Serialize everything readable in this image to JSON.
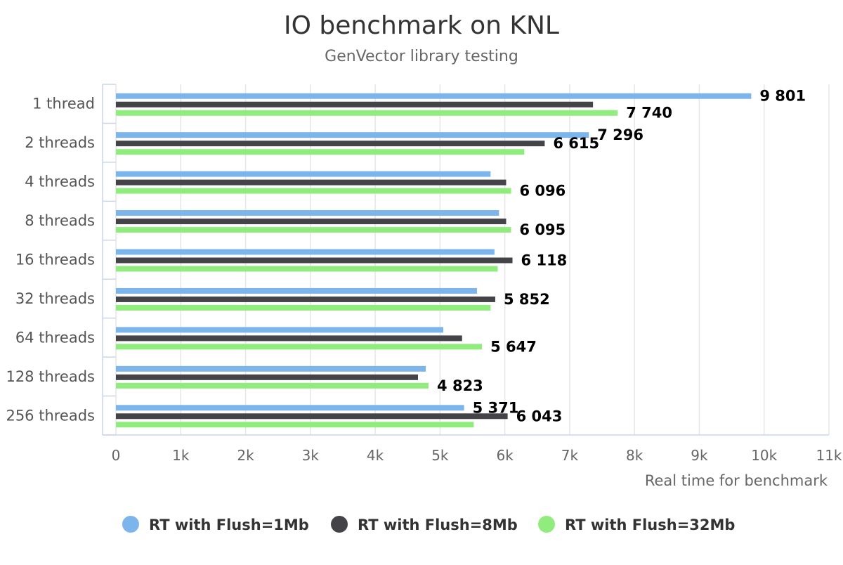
{
  "chart_data": {
    "type": "bar",
    "orientation": "horizontal",
    "title": "IO benchmark on KNL",
    "subtitle": "GenVector library testing",
    "xlabel": "Real time for benchmark",
    "ylabel": "",
    "xlim": [
      0,
      11000
    ],
    "x_ticks": [
      0,
      1000,
      2000,
      3000,
      4000,
      5000,
      6000,
      7000,
      8000,
      9000,
      10000,
      11000
    ],
    "x_tick_labels": [
      "0",
      "1k",
      "2k",
      "3k",
      "4k",
      "5k",
      "6k",
      "7k",
      "8k",
      "9k",
      "10k",
      "11k"
    ],
    "grid": true,
    "legend_position": "bottom-center",
    "categories": [
      "1 thread",
      "2 threads",
      "4 threads",
      "8 threads",
      "16 threads",
      "32 threads",
      "64 threads",
      "128 threads",
      "256 threads"
    ],
    "series": [
      {
        "name": "RT with Flush=1Mb",
        "color": "#7cb5ec",
        "values": [
          9801,
          7296,
          5780,
          5910,
          5840,
          5570,
          5050,
          4780,
          5371
        ],
        "labels": [
          "9 801",
          "7 296",
          "",
          "",
          "",
          "",
          "",
          "",
          "5 371"
        ]
      },
      {
        "name": "RT with Flush=8Mb",
        "color": "#434348",
        "values": [
          7360,
          6615,
          6020,
          6020,
          6118,
          5852,
          5340,
          4660,
          6043
        ],
        "labels": [
          "",
          "6 615",
          "",
          "",
          "6 118",
          "5 852",
          "",
          "",
          "6 043"
        ]
      },
      {
        "name": "RT with Flush=32Mb",
        "color": "#90ed7d",
        "values": [
          7740,
          6300,
          6096,
          6095,
          5890,
          5780,
          5647,
          4823,
          5520
        ],
        "labels": [
          "7 740",
          "",
          "6 096",
          "6 095",
          "",
          "",
          "5 647",
          "4 823",
          ""
        ]
      }
    ]
  }
}
